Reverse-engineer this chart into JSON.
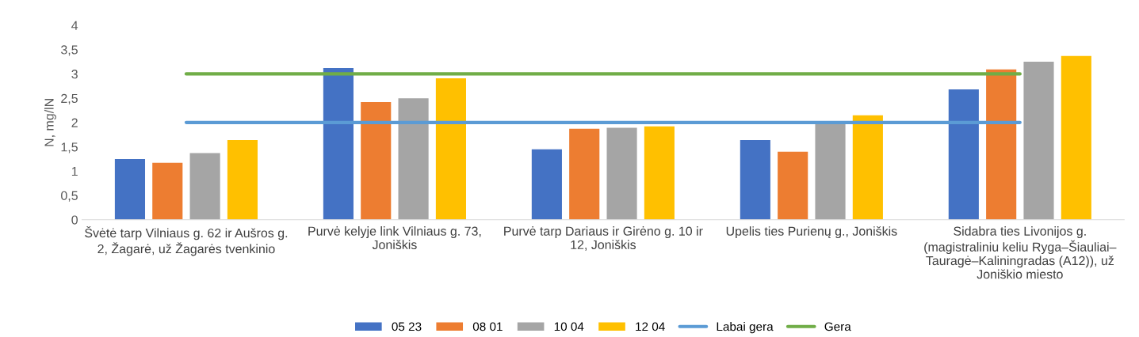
{
  "chart_data": {
    "type": "bar",
    "ylabel": "N, mg/lN",
    "categories": [
      "Švėtė tarp Vilniaus g. 62 ir Aušros g.\n2, Žagarė, už Žagarės tvenkinio",
      "Purvė kelyje link Vilniaus g. 73,\nJoniškis",
      "Purvė tarp Dariaus ir Girėno g. 10 ir\n12, Joniškis",
      "Upelis ties Purienų g., Joniškis",
      "Sidabra ties Livonijos g.\n(magistraliniu keliu Ryga–Šiauliai–\nTauragė–Kaliningradas (A12)), už\nJoniškio miesto"
    ],
    "series": [
      {
        "name": "05 23",
        "color": "#4472c4",
        "values": [
          1.25,
          3.12,
          1.45,
          1.64,
          2.68
        ]
      },
      {
        "name": "08 01",
        "color": "#ed7d31",
        "values": [
          1.17,
          2.42,
          1.87,
          1.4,
          3.09
        ]
      },
      {
        "name": "10 04",
        "color": "#a5a5a5",
        "values": [
          1.37,
          2.5,
          1.89,
          2.0,
          3.25
        ]
      },
      {
        "name": "12 04",
        "color": "#ffc000",
        "values": [
          1.64,
          2.91,
          1.92,
          2.15,
          3.37
        ]
      },
      {
        "name": "Labai gera",
        "type": "line",
        "color": "#5b9bd5",
        "values": [
          2,
          2,
          2,
          2,
          2
        ]
      },
      {
        "name": "Gera",
        "type": "line",
        "color": "#70ad47",
        "values": [
          3,
          3,
          3,
          3,
          3
        ]
      }
    ],
    "ylim": [
      0,
      4
    ],
    "yticks": [
      0,
      {
        "value": 0.5,
        "label": "0,5"
      },
      1,
      {
        "value": 1.5,
        "label": "1,5"
      },
      2,
      {
        "value": 2.5,
        "label": "2,5"
      },
      3,
      {
        "value": 3.5,
        "label": "3,5"
      },
      4
    ],
    "grid": false,
    "legend": "bottom",
    "marker": "none",
    "line_style": "solid"
  }
}
